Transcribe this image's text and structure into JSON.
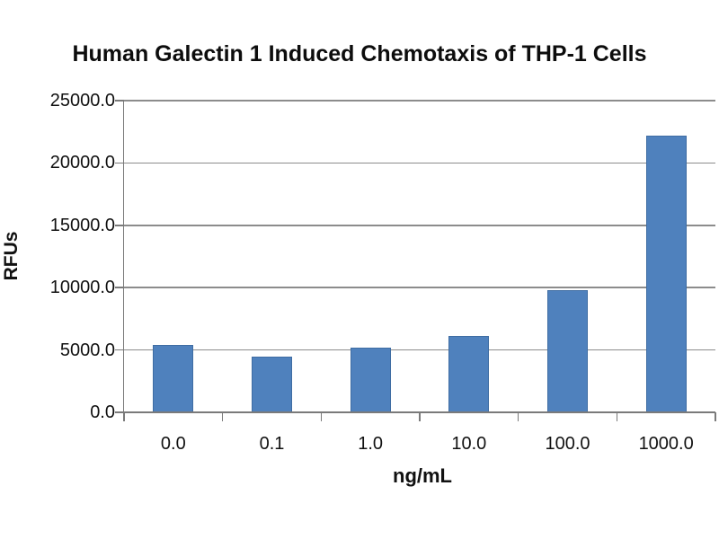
{
  "chart_data": {
    "type": "bar",
    "title": "Human Galectin 1 Induced Chemotaxis of THP-1 Cells",
    "xlabel": "ng/mL",
    "ylabel": "RFUs",
    "categories": [
      "0.0",
      "0.1",
      "1.0",
      "10.0",
      "100.0",
      "1000.0"
    ],
    "values": [
      5400,
      4500,
      5200,
      6100,
      9800,
      22200
    ],
    "ylim": [
      0,
      25000
    ],
    "ytick_interval": 5000,
    "ytick_labels": [
      "0.0",
      "5000.0",
      "10000.0",
      "15000.0",
      "20000.0",
      "25000.0"
    ],
    "grid": "horizontal-only",
    "legend": "none",
    "colors": {
      "bar_fill": "#4F81BD",
      "bar_border": "#3F6DA3",
      "gridline": "#8C8C8C",
      "axis": "#7A7A7A",
      "text": "#111111",
      "background": "#FFFFFF"
    }
  }
}
